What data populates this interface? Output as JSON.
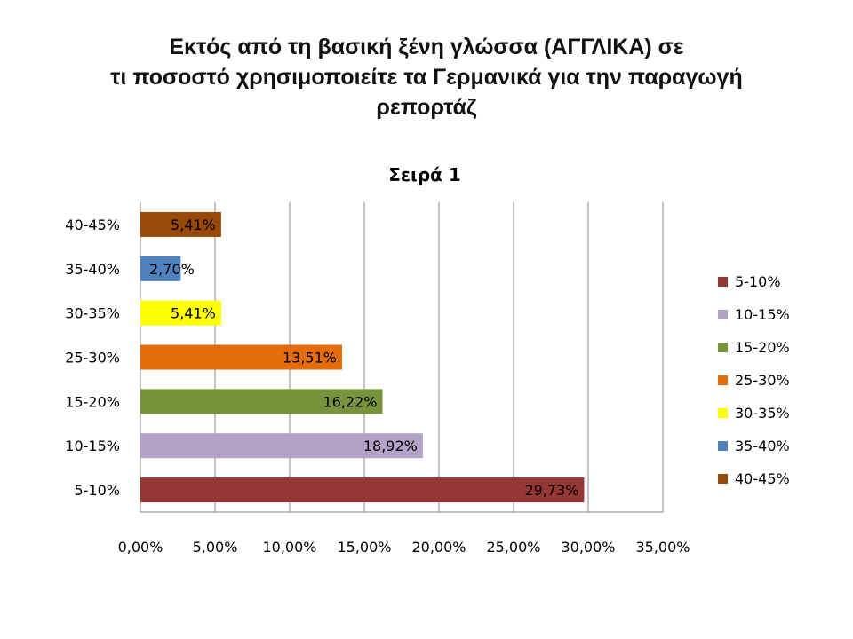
{
  "title_lines": [
    "Εκτός από τη βασική ξένη γλώσσα (ΑΓΓΛΙΚΑ) σε",
    "τι ποσοστό χρησιμοποιείτε τα Γερμανικά  για την παραγωγή",
    "ρεπορτάζ"
  ],
  "chart_data": {
    "type": "bar",
    "orientation": "horizontal",
    "title": "Σειρά 1",
    "categories": [
      "5-10%",
      "10-15%",
      "15-20%",
      "25-30%",
      "30-35%",
      "35-40%",
      "40-45%"
    ],
    "values": [
      29.73,
      18.92,
      16.22,
      13.51,
      5.41,
      2.7,
      5.41
    ],
    "data_labels": [
      "29,73%",
      "18,92%",
      "16,22%",
      "13,51%",
      "5,41%",
      "2,70%",
      "5,41%"
    ],
    "colors": [
      "#953735",
      "#b3a2c7",
      "#77933c",
      "#e46c0a",
      "#ffff00",
      "#4f81bd",
      "#984807"
    ],
    "x_ticks": [
      "0,00%",
      "5,00%",
      "10,00%",
      "15,00%",
      "20,00%",
      "25,00%",
      "30,00%",
      "35,00%"
    ],
    "xlim": [
      0,
      35
    ],
    "grid": true,
    "legend_position": "right",
    "legend": [
      "5-10%",
      "10-15%",
      "15-20%",
      "25-30%",
      "30-35%",
      "35-40%",
      "40-45%"
    ]
  }
}
